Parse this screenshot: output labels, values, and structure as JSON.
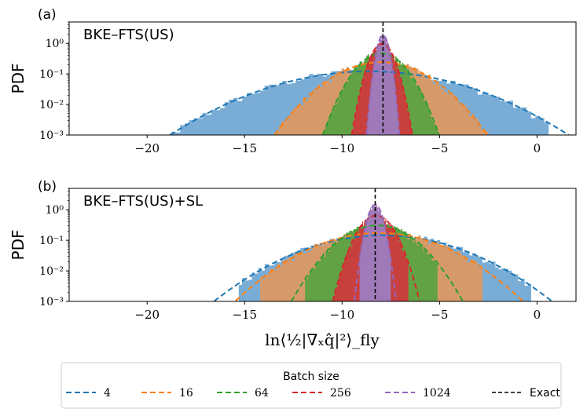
{
  "chart_data": [
    {
      "type": "area",
      "panel_label": "(a)",
      "panel_title": "BKE–FTS(US)",
      "ylabel": "PDF",
      "xlabel": "",
      "yscale": "log",
      "xlim": [
        -24,
        2
      ],
      "ylim": [
        0.001,
        5
      ],
      "xticks": [
        -20,
        -15,
        -10,
        -5,
        0
      ],
      "xtick_labels": [
        "−20",
        "−15",
        "−10",
        "−5",
        "0"
      ],
      "yticks": [
        0.001,
        0.01,
        0.1,
        1
      ],
      "ytick_labels": [
        "10⁻³",
        "10⁻²",
        "10⁻¹",
        "10⁰"
      ],
      "exact_value": -7.9,
      "series": [
        {
          "name": "4",
          "mean": -8.6,
          "std": 3.3,
          "x_min": -19.9,
          "x_max": 0.6
        },
        {
          "name": "16",
          "mean": -8.0,
          "std": 1.65,
          "x_min": -13.6,
          "x_max": -2.5
        },
        {
          "name": "64",
          "mean": -8.0,
          "std": 0.85,
          "x_min": -11.2,
          "x_max": -4.9
        },
        {
          "name": "256",
          "mean": -7.95,
          "std": 0.42,
          "x_min": -9.8,
          "x_max": -6.3
        },
        {
          "name": "1024",
          "mean": -7.9,
          "std": 0.22,
          "x_min": -8.8,
          "x_max": -7.1
        }
      ]
    },
    {
      "type": "area",
      "panel_label": "(b)",
      "panel_title": "BKE–FTS(US)+SL",
      "ylabel": "PDF",
      "xlabel": "ln⟨½|∇ₓq̂|²⟩_fly",
      "yscale": "log",
      "xlim": [
        -24,
        2
      ],
      "ylim": [
        0.001,
        5
      ],
      "xticks": [
        -20,
        -15,
        -10,
        -5,
        0
      ],
      "xtick_labels": [
        "−20",
        "−15",
        "−10",
        "−5",
        "0"
      ],
      "yticks": [
        0.001,
        0.01,
        0.1,
        1
      ],
      "ytick_labels": [
        "10⁻³",
        "10⁻²",
        "10⁻¹",
        "10⁰"
      ],
      "exact_value": -8.3,
      "series": [
        {
          "name": "4",
          "mean": -7.9,
          "std": 2.75,
          "x_min": -15.3,
          "x_max": -0.3
        },
        {
          "name": "16",
          "mean": -8.1,
          "std": 2.3,
          "x_min": -14.2,
          "x_max": -2.8
        },
        {
          "name": "64",
          "mean": -8.2,
          "std": 1.3,
          "x_min": -11.9,
          "x_max": -5.1
        },
        {
          "name": "256",
          "mean": -8.25,
          "std": 0.62,
          "x_min": -10.4,
          "x_max": -6.6
        },
        {
          "name": "1024",
          "mean": -8.3,
          "std": 0.28,
          "x_min": -9.1,
          "x_max": -7.5
        }
      ]
    }
  ],
  "legend": {
    "title": "Batch size",
    "entries": [
      {
        "label": "4",
        "color": "#1f77b4"
      },
      {
        "label": "16",
        "color": "#ff7f0e"
      },
      {
        "label": "64",
        "color": "#2ca02c"
      },
      {
        "label": "256",
        "color": "#d62728"
      },
      {
        "label": "1024",
        "color": "#9467bd"
      },
      {
        "label": "Exact",
        "color": "#000000"
      }
    ]
  },
  "colors": {
    "hist_fill": [
      "#7aadd6",
      "#d69a6a",
      "#62a245",
      "#c8403e",
      "#a07ab8"
    ],
    "line": [
      "#1f77b4",
      "#ff7f0e",
      "#2ca02c",
      "#d62728",
      "#9467bd"
    ],
    "exact": "#000000"
  }
}
